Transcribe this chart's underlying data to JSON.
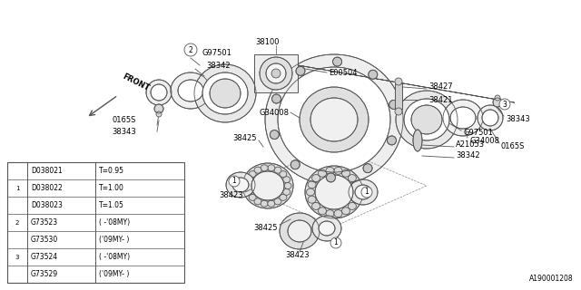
{
  "bg_color": "#ffffff",
  "fig_width": 6.4,
  "fig_height": 3.2,
  "dpi": 100,
  "part_number_bottom_right": "A190001208",
  "line_color": "#555555",
  "text_color": "#000000",
  "table": {
    "rows": [
      {
        "circle": "",
        "part": "D038021",
        "spec": "T=0.95"
      },
      {
        "circle": "1",
        "part": "D038022",
        "spec": "T=1.00"
      },
      {
        "circle": "",
        "part": "D038023",
        "spec": "T=1.05"
      },
      {
        "circle": "2",
        "part": "G73523",
        "spec": "( -'08MY)"
      },
      {
        "circle": "",
        "part": "G73530",
        "spec": "('09MY- )"
      },
      {
        "circle": "3",
        "part": "G73524",
        "spec": "( -'08MY)"
      },
      {
        "circle": "",
        "part": "G73529",
        "spec": "('09MY- )"
      }
    ]
  }
}
